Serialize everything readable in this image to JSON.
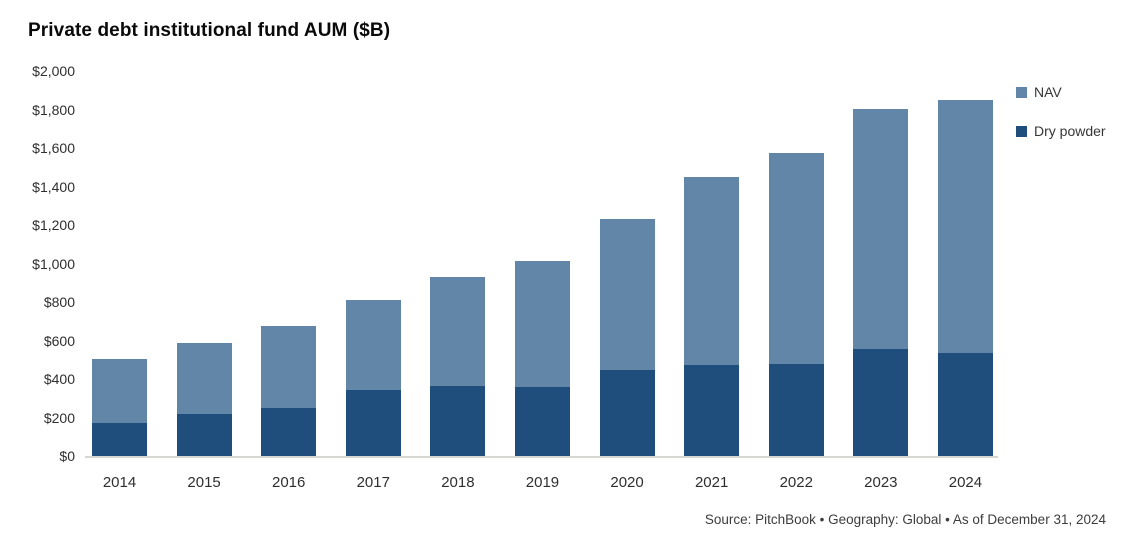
{
  "title": "Private debt institutional fund AUM ($B)",
  "legend": {
    "items": [
      {
        "label": "NAV",
        "color": "#6186a8"
      },
      {
        "label": "Dry powder",
        "color": "#1f4e7c"
      }
    ]
  },
  "source_line": "Source: PitchBook • Geography: Global • As of December 31, 2024",
  "colors": {
    "nav": "#6186a8",
    "dry_powder": "#1f4e7c",
    "baseline": "#d8d6d1",
    "axis_text": "#2f2f2f",
    "title_text": "#0a0a0a",
    "background": "#ffffff"
  },
  "chart_data": {
    "type": "bar",
    "stacked": true,
    "title": "Private debt institutional fund AUM ($B)",
    "categories": [
      "2014",
      "2015",
      "2016",
      "2017",
      "2018",
      "2019",
      "2020",
      "2021",
      "2022",
      "2023",
      "2024"
    ],
    "series": [
      {
        "name": "Dry powder",
        "color": "#1f4e7c",
        "values": [
          170,
          220,
          250,
          345,
          365,
          360,
          445,
          475,
          480,
          555,
          535
        ]
      },
      {
        "name": "NAV",
        "color": "#6186a8",
        "values": [
          335,
          365,
          425,
          465,
          565,
          655,
          785,
          975,
          1095,
          1250,
          1315
        ]
      }
    ],
    "totals": [
      505,
      585,
      675,
      810,
      930,
      1015,
      1230,
      1450,
      1575,
      1805,
      1850
    ],
    "xlabel": "",
    "ylabel": "",
    "ylim": [
      0,
      2000
    ],
    "y_tick_interval": 200,
    "y_tick_labels": [
      "$0",
      "$200",
      "$400",
      "$600",
      "$800",
      "$1,000",
      "$1,200",
      "$1,400",
      "$1,600",
      "$1,800",
      "$2,000"
    ],
    "grid": false,
    "legend_position": "right"
  }
}
